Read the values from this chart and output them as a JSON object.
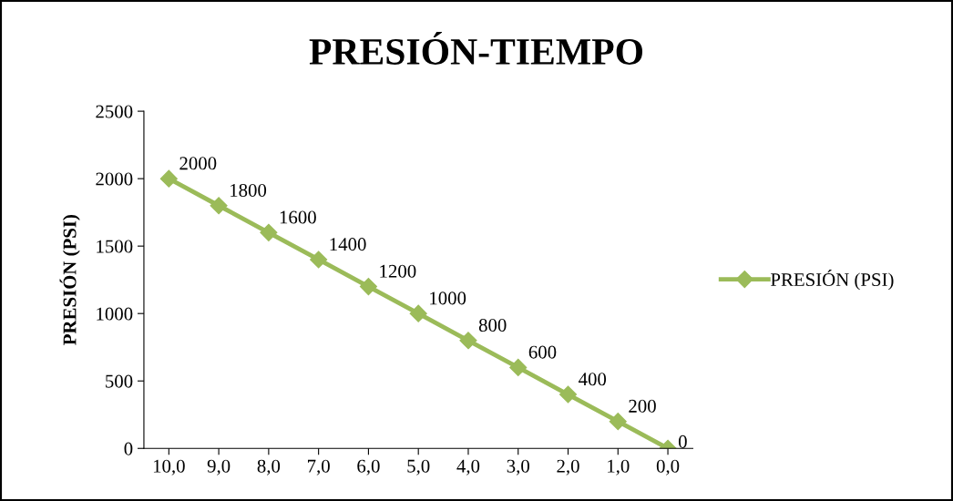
{
  "chart_data": {
    "type": "line",
    "title": "PRESIÓN-TIEMPO",
    "ylabel": "PRESIÓN (PSI)",
    "categories": [
      "10,0",
      "9,0",
      "8,0",
      "7,0",
      "6,0",
      "5,0",
      "4,0",
      "3,0",
      "2,0",
      "1,0",
      "0,0"
    ],
    "series": [
      {
        "name": "PRESIÓN (PSI)",
        "color": "#9bbb59",
        "values": [
          2000,
          1800,
          1600,
          1400,
          1200,
          1000,
          800,
          600,
          400,
          200,
          0
        ]
      }
    ],
    "ylim": [
      0,
      2500
    ],
    "yticks": [
      0,
      500,
      1000,
      1500,
      2000,
      2500
    ],
    "data_labels": true,
    "legend": "right",
    "marker": "diamond",
    "line_style": "solid",
    "grid": false
  }
}
